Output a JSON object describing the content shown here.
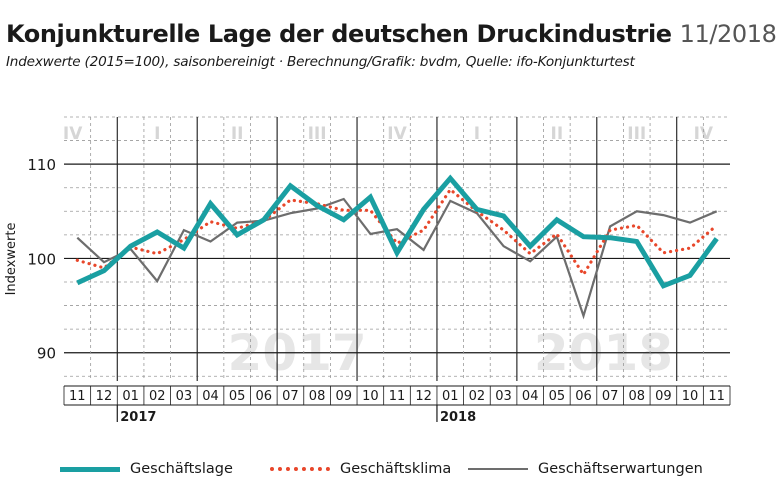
{
  "title": {
    "main": "Konjunkturelle Lage der deutschen Druckindustrie",
    "date": "11/2018"
  },
  "subtitle": "Indexwerte (2015=100), saisonbereinigt · Berechnung/Grafik: bvdm, Quelle: ifo-Konjunkturtest",
  "chart_data": {
    "type": "line",
    "ylabel": "Indexwerte",
    "ylim": [
      87,
      115
    ],
    "yticks": [
      90,
      100,
      110
    ],
    "grid": true,
    "categories": [
      "11",
      "12",
      "01",
      "02",
      "03",
      "04",
      "05",
      "06",
      "07",
      "08",
      "09",
      "10",
      "11",
      "12",
      "01",
      "02",
      "03",
      "04",
      "05",
      "06",
      "07",
      "08",
      "09",
      "10",
      "11"
    ],
    "year_labels": [
      {
        "label": "2017",
        "index": 2
      },
      {
        "label": "2018",
        "index": 14
      }
    ],
    "watermarks": [
      {
        "label": "2017",
        "from": 2,
        "to": 13
      },
      {
        "label": "2018",
        "from": 14,
        "to": 24
      }
    ],
    "quarters": [
      {
        "label": "IV",
        "from": 0,
        "to": 1
      },
      {
        "label": "I",
        "from": 2,
        "to": 4
      },
      {
        "label": "II",
        "from": 5,
        "to": 7
      },
      {
        "label": "III",
        "from": 8,
        "to": 10
      },
      {
        "label": "IV",
        "from": 11,
        "to": 13
      },
      {
        "label": "I",
        "from": 14,
        "to": 16
      },
      {
        "label": "II",
        "from": 17,
        "to": 19
      },
      {
        "label": "III",
        "from": 20,
        "to": 22
      },
      {
        "label": "IV",
        "from": 23,
        "to": 24
      }
    ],
    "series": [
      {
        "name": "Geschäftslage",
        "color": "#1a9fa2",
        "style": "solid",
        "values": [
          97.4,
          98.7,
          101.3,
          102.8,
          101.1,
          105.8,
          102.5,
          104.1,
          107.7,
          105.6,
          104.1,
          106.5,
          100.6,
          105.2,
          108.5,
          105.2,
          104.5,
          101.3,
          104.1,
          102.3,
          102.2,
          101.8,
          97.1,
          98.2,
          102.1
        ]
      },
      {
        "name": "Geschäftsklima",
        "color": "#e8472b",
        "style": "dotted",
        "values": [
          99.8,
          99.0,
          101.2,
          100.5,
          102.0,
          103.9,
          103.2,
          104.0,
          106.2,
          105.8,
          105.1,
          105.1,
          101.6,
          103.0,
          107.3,
          105.0,
          103.0,
          100.5,
          102.6,
          98.3,
          103.0,
          103.5,
          100.6,
          101.1,
          103.5
        ]
      },
      {
        "name": "Geschäftserwartungen",
        "color": "#6d6d6d",
        "style": "solid",
        "values": [
          102.2,
          99.6,
          101.0,
          97.6,
          103.0,
          101.8,
          103.8,
          104.0,
          104.8,
          105.3,
          106.3,
          102.6,
          103.1,
          100.9,
          106.1,
          104.8,
          101.3,
          99.7,
          102.3,
          93.9,
          103.4,
          105.0,
          104.6,
          103.8,
          105.0
        ]
      }
    ]
  }
}
